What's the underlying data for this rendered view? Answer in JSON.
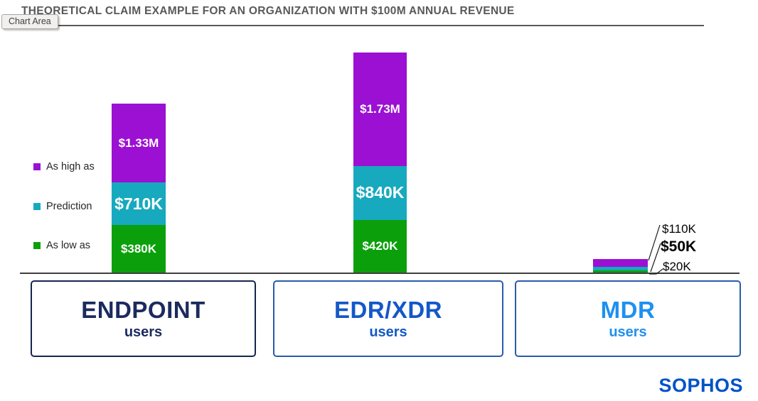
{
  "tooltip": {
    "label": "Chart Area"
  },
  "header": {
    "title": "THEORETICAL CLAIM EXAMPLE FOR AN ORGANIZATION WITH $100M ANNUAL REVENUE"
  },
  "legend": {
    "items": [
      {
        "label": "As high as",
        "color": "#9B10D2"
      },
      {
        "label": "Prediction",
        "color": "#17A9BE"
      },
      {
        "label": "As low as",
        "color": "#0BA00B"
      }
    ]
  },
  "chart_data": {
    "type": "bar",
    "stacked": true,
    "title": "THEORETICAL CLAIM EXAMPLE FOR AN ORGANIZATION WITH $100M ANNUAL REVENUE",
    "categories": [
      "ENDPOINT users",
      "EDR/XDR users",
      "MDR users"
    ],
    "series": [
      {
        "name": "As low as",
        "color": "#0BA00B",
        "values_usd_thousands": [
          380,
          420,
          20
        ],
        "labels": [
          "$380K",
          "$420K",
          "$20K"
        ]
      },
      {
        "name": "Prediction",
        "color": "#17A9BE",
        "values_usd_thousands": [
          710,
          840,
          50
        ],
        "labels": [
          "$710K",
          "$840K",
          "$50K"
        ]
      },
      {
        "name": "As high as",
        "color": "#9B10D2",
        "values_usd_thousands": [
          1330,
          1730,
          110
        ],
        "labels": [
          "$1.33M",
          "$1.73M",
          "$110K"
        ]
      }
    ],
    "value_encoding": "series values are cumulative totals; segment height equals difference between successive series",
    "ylim_usd_thousands": [
      0,
      1730
    ],
    "grid": false,
    "legend_position": "left",
    "data_labels": "inside segments for ENDPOINT and EDR/XDR bars; callout labels with leader lines for MDR bar"
  },
  "category_boxes": [
    {
      "title": "ENDPOINT",
      "subtitle": "users",
      "text_color": "#1B2A5E",
      "border_color": "#14264E"
    },
    {
      "title": "EDR/XDR",
      "subtitle": "users",
      "text_color": "#1358C8",
      "border_color": "#2A5CAA"
    },
    {
      "title": "MDR",
      "subtitle": "users",
      "text_color": "#1E90F0",
      "border_color": "#2A5CAA"
    }
  ],
  "footer": {
    "brand": "SOPHOS",
    "brand_color": "#0052C8"
  }
}
